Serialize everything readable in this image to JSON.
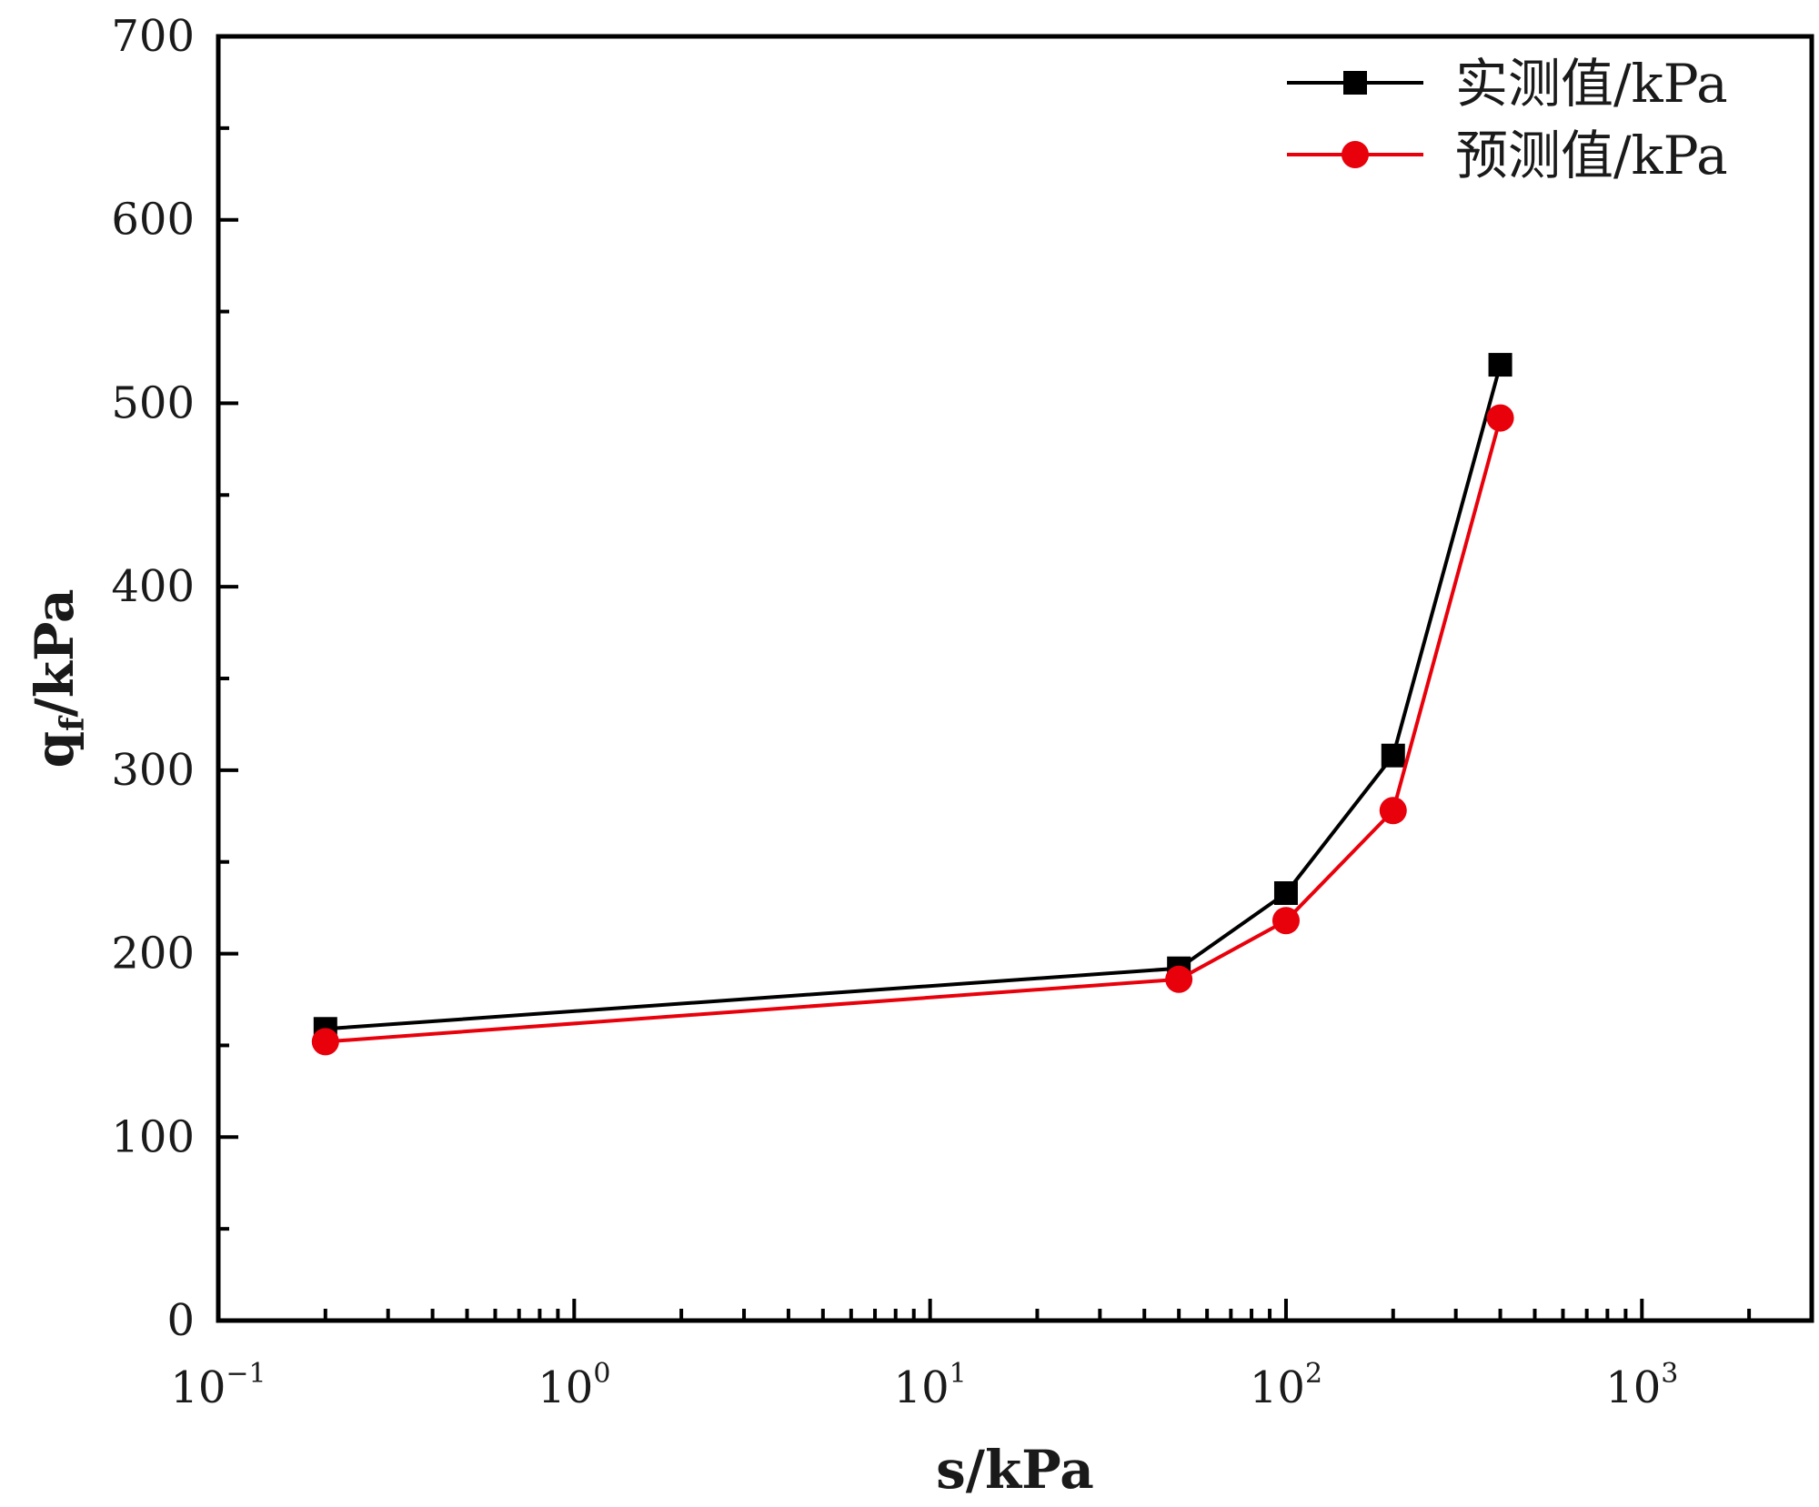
{
  "chart_data": {
    "type": "line",
    "x_scale": "log",
    "xlabel": "s/kPa",
    "ylabel": {
      "main": "q",
      "sub": "f",
      "rest": "/kPa"
    },
    "xlim": [
      0.1,
      3000
    ],
    "ylim": [
      0,
      700
    ],
    "y_ticks": [
      0,
      100,
      200,
      300,
      400,
      500,
      600,
      700
    ],
    "y_tick_labels": [
      "0",
      "100",
      "200",
      "300",
      "400",
      "500",
      "600",
      "700"
    ],
    "x_major_ticks": [
      0.1,
      1,
      10,
      100,
      1000
    ],
    "x_tick_labels": [
      {
        "base": "10",
        "exp": "−1"
      },
      {
        "base": "10",
        "exp": "0"
      },
      {
        "base": "10",
        "exp": "1"
      },
      {
        "base": "10",
        "exp": "2"
      },
      {
        "base": "10",
        "exp": "3"
      }
    ],
    "legend_position": "top-right",
    "grid": false,
    "x": [
      0.2,
      50,
      100,
      200,
      400
    ],
    "series": [
      {
        "name": "实测值/kPa",
        "values": [
          159,
          192,
          233,
          308,
          521
        ],
        "color": "#000000",
        "marker": "square"
      },
      {
        "name": "预测值/kPa",
        "values": [
          152,
          186,
          218,
          278,
          492
        ],
        "color": "#e8000b",
        "marker": "circle"
      }
    ]
  }
}
